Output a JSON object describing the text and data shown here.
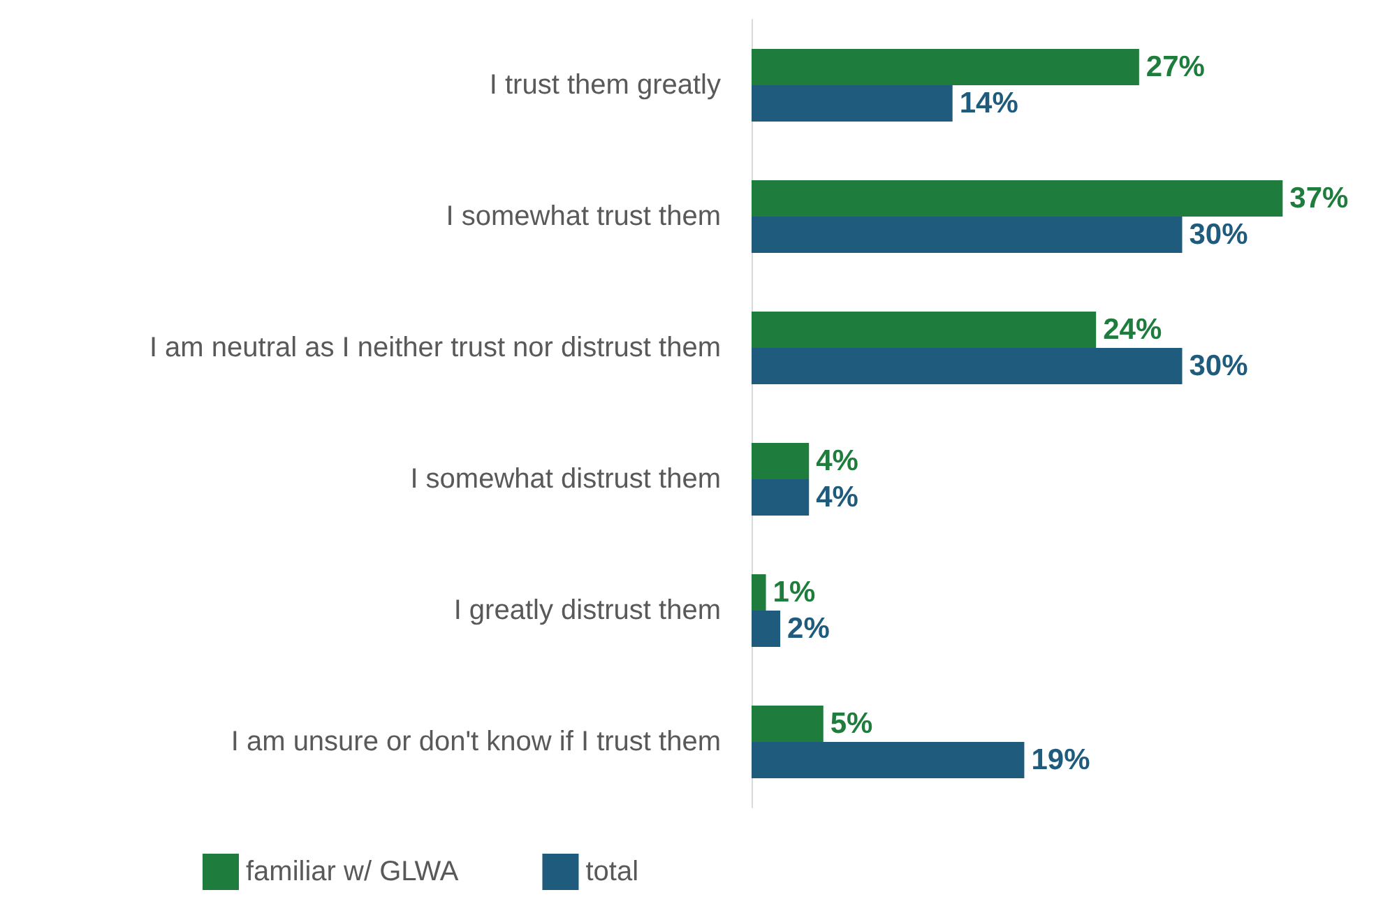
{
  "chart_data": {
    "type": "bar",
    "orientation": "horizontal",
    "categories": [
      "I trust them greatly",
      "I somewhat trust them",
      "I am neutral as I neither trust nor distrust them",
      "I somewhat distrust them",
      "I greatly distrust them",
      "I am unsure or don't know if I trust them"
    ],
    "series": [
      {
        "name": "familiar w/ GLWA",
        "color": "#1e7d3d",
        "values": [
          27,
          37,
          24,
          4,
          1,
          5
        ],
        "value_labels": [
          "27%",
          "37%",
          "24%",
          "4%",
          "1%",
          "5%"
        ]
      },
      {
        "name": "total",
        "color": "#1f5b7d",
        "values": [
          14,
          30,
          30,
          4,
          2,
          19
        ],
        "value_labels": [
          "14%",
          "30%",
          "30%",
          "4%",
          "2%",
          "19%"
        ]
      }
    ],
    "legend": "bottom",
    "grid": false
  }
}
